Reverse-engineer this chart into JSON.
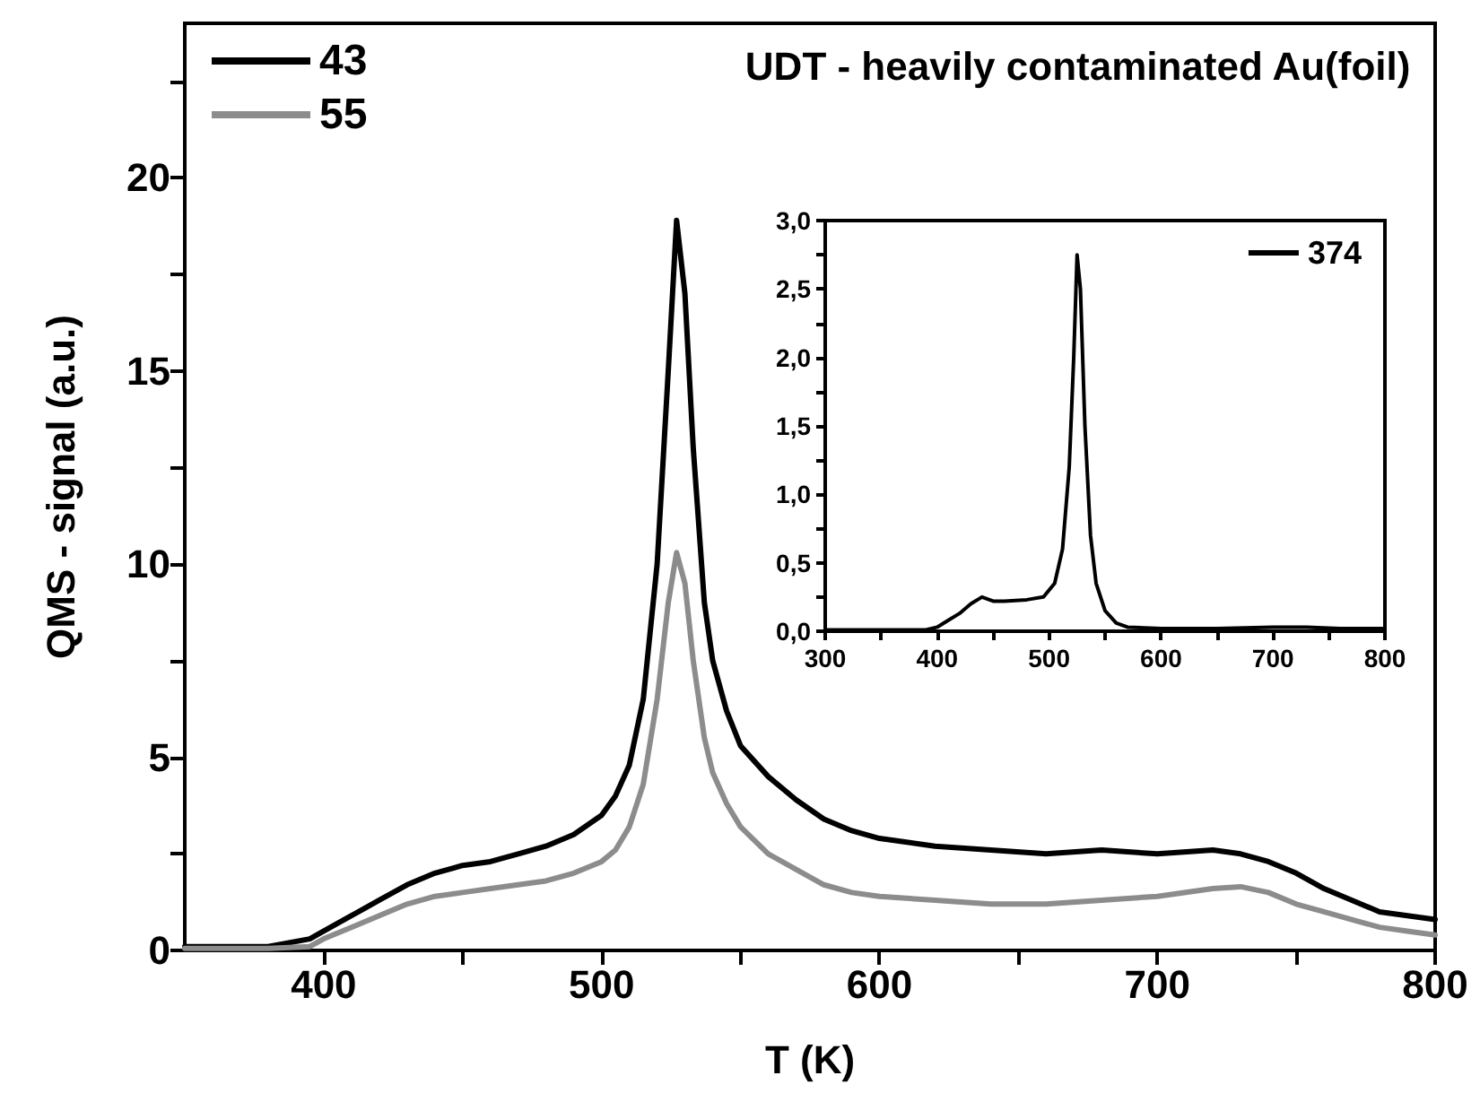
{
  "chart_data": [
    {
      "type": "line",
      "title": "UDT - heavily contaminated Au(foil)",
      "xlabel": "T (K)",
      "ylabel": "QMS - signal (a.u.)",
      "xlim": [
        350,
        800
      ],
      "ylim": [
        0,
        24
      ],
      "xticks": [
        400,
        {
          "value": 450,
          "label": null
        },
        500,
        {
          "value": 550,
          "label": null
        },
        600,
        {
          "value": 650,
          "label": null
        },
        700,
        {
          "value": 750,
          "label": null
        },
        800
      ],
      "yticks": [
        0,
        {
          "value": 2.5,
          "label": null
        },
        5,
        {
          "value": 7.5,
          "label": null
        },
        10,
        {
          "value": 12.5,
          "label": null
        },
        15,
        {
          "value": 17.5,
          "label": null
        },
        20,
        {
          "value": 22.5,
          "label": null
        }
      ],
      "x": [
        350,
        380,
        395,
        400,
        410,
        420,
        430,
        440,
        450,
        460,
        470,
        480,
        490,
        500,
        505,
        510,
        515,
        520,
        524,
        527,
        530,
        533,
        537,
        540,
        545,
        550,
        560,
        570,
        580,
        590,
        600,
        620,
        640,
        660,
        680,
        700,
        720,
        730,
        740,
        750,
        760,
        770,
        780,
        790,
        800
      ],
      "series": [
        {
          "name": "43",
          "color": "#000000",
          "values": [
            0.1,
            0.1,
            0.3,
            0.5,
            0.9,
            1.3,
            1.7,
            2.0,
            2.2,
            2.3,
            2.5,
            2.7,
            3.0,
            3.5,
            4.0,
            4.8,
            6.5,
            10,
            15,
            18.9,
            17,
            13,
            9,
            7.5,
            6.2,
            5.3,
            4.5,
            3.9,
            3.4,
            3.1,
            2.9,
            2.7,
            2.6,
            2.5,
            2.6,
            2.5,
            2.6,
            2.5,
            2.3,
            2.0,
            1.6,
            1.3,
            1.0,
            0.9,
            0.8
          ]
        },
        {
          "name": "55",
          "color": "#8c8c8c",
          "values": [
            0.05,
            0.05,
            0.1,
            0.3,
            0.6,
            0.9,
            1.2,
            1.4,
            1.5,
            1.6,
            1.7,
            1.8,
            2.0,
            2.3,
            2.6,
            3.2,
            4.3,
            6.5,
            9,
            10.3,
            9.5,
            7.5,
            5.5,
            4.6,
            3.8,
            3.2,
            2.5,
            2.1,
            1.7,
            1.5,
            1.4,
            1.3,
            1.2,
            1.2,
            1.3,
            1.4,
            1.6,
            1.65,
            1.5,
            1.2,
            1.0,
            0.8,
            0.6,
            0.5,
            0.4
          ]
        }
      ],
      "legend": "top left",
      "marker": "none",
      "grid": false
    },
    {
      "type": "line",
      "xlim": [
        300,
        800
      ],
      "ylim": [
        0,
        3
      ],
      "xticks": [
        300,
        {
          "value": 350,
          "label": null
        },
        400,
        {
          "value": 450,
          "label": null
        },
        500,
        {
          "value": 550,
          "label": null
        },
        600,
        {
          "value": 650,
          "label": null
        },
        700,
        {
          "value": 750,
          "label": null
        },
        800
      ],
      "yticks": [
        {
          "value": 0,
          "label": "0,0"
        },
        {
          "value": 0.25,
          "label": null
        },
        {
          "value": 0.5,
          "label": "0,5"
        },
        {
          "value": 0.75,
          "label": null
        },
        {
          "value": 1,
          "label": "1,0"
        },
        {
          "value": 1.25,
          "label": null
        },
        {
          "value": 1.5,
          "label": "1,5"
        },
        {
          "value": 1.75,
          "label": null
        },
        {
          "value": 2,
          "label": "2,0"
        },
        {
          "value": 2.25,
          "label": null
        },
        {
          "value": 2.5,
          "label": "2,5"
        },
        {
          "value": 2.75,
          "label": null
        },
        {
          "value": 3,
          "label": "3,0"
        }
      ],
      "x": [
        300,
        390,
        400,
        410,
        420,
        430,
        440,
        450,
        460,
        480,
        495,
        505,
        512,
        518,
        522,
        525,
        528,
        532,
        537,
        542,
        550,
        560,
        570,
        600,
        650,
        700,
        730,
        760,
        800
      ],
      "series": [
        {
          "name": "374",
          "color": "#000000",
          "values": [
            0.01,
            0.01,
            0.03,
            0.08,
            0.13,
            0.2,
            0.25,
            0.22,
            0.22,
            0.23,
            0.25,
            0.35,
            0.6,
            1.2,
            2.0,
            2.75,
            2.5,
            1.5,
            0.7,
            0.35,
            0.15,
            0.06,
            0.03,
            0.02,
            0.02,
            0.03,
            0.03,
            0.02,
            0.02
          ]
        }
      ],
      "legend": "top right",
      "marker": "none",
      "grid": false
    }
  ]
}
